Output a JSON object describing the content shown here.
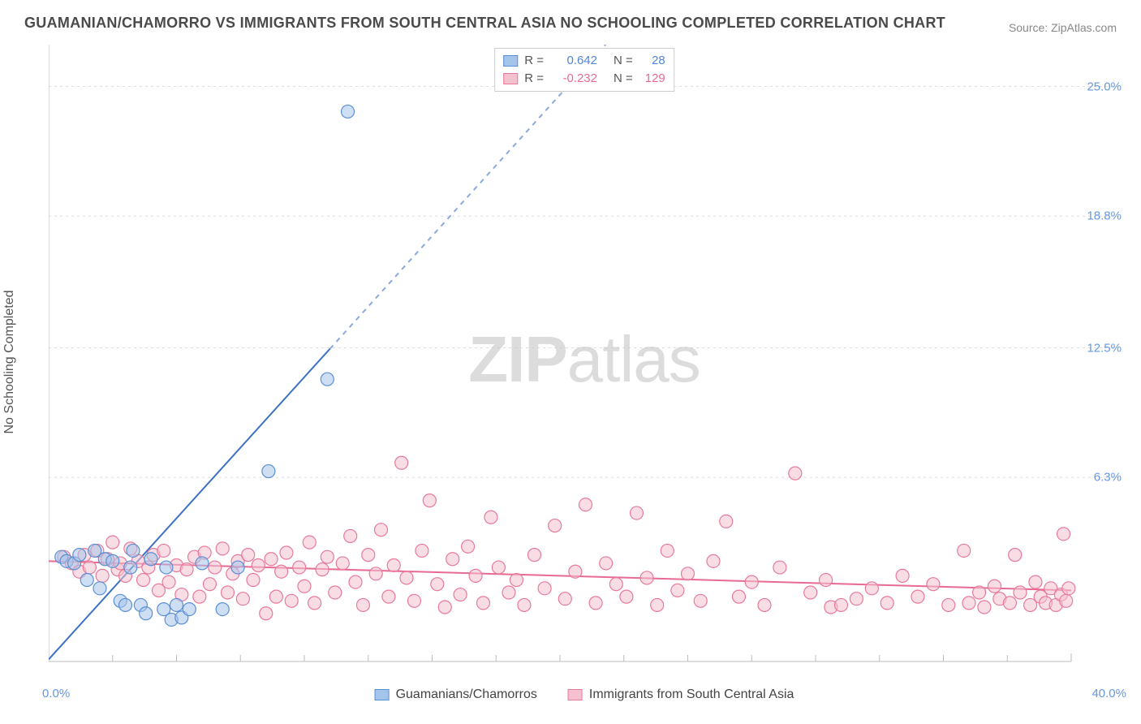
{
  "title": "GUAMANIAN/CHAMORRO VS IMMIGRANTS FROM SOUTH CENTRAL ASIA NO SCHOOLING COMPLETED CORRELATION CHART",
  "source": "Source: ZipAtlas.com",
  "y_axis_label": "No Schooling Completed",
  "watermark": {
    "bold": "ZIP",
    "light": "atlas"
  },
  "chart": {
    "type": "scatter",
    "xlim": [
      0,
      40
    ],
    "ylim": [
      -2.5,
      27
    ],
    "x_ticks_minor_step": 2.5,
    "y_ticks": [
      {
        "value": 6.3,
        "label": "6.3%"
      },
      {
        "value": 12.5,
        "label": "12.5%"
      },
      {
        "value": 18.8,
        "label": "18.8%"
      },
      {
        "value": 25.0,
        "label": "25.0%"
      }
    ],
    "x_tick_labels": {
      "min": "0.0%",
      "max": "40.0%"
    },
    "grid_color": "#dddddd",
    "axis_color": "#bbbbbb",
    "background_color": "#ffffff",
    "border_color": "#bbbbbb",
    "series": [
      {
        "id": "blue",
        "name": "Guamanians/Chamorros",
        "fill_color": "#a5c4ea",
        "stroke_color": "#5b8fd4",
        "marker_radius": 8,
        "R": "0.642",
        "N": "28",
        "R_color": "#4f86d8",
        "trend": {
          "slope": 1.35,
          "intercept": -2.4,
          "color": "#3d72c4",
          "dash_after_x": 11.0,
          "width": 2
        },
        "points": [
          [
            0.5,
            2.5
          ],
          [
            0.7,
            2.3
          ],
          [
            1.0,
            2.2
          ],
          [
            1.2,
            2.6
          ],
          [
            1.5,
            1.4
          ],
          [
            1.8,
            2.8
          ],
          [
            2.0,
            1.0
          ],
          [
            2.2,
            2.4
          ],
          [
            2.5,
            2.3
          ],
          [
            2.8,
            0.4
          ],
          [
            3.0,
            0.2
          ],
          [
            3.2,
            2.0
          ],
          [
            3.3,
            2.8
          ],
          [
            3.6,
            0.2
          ],
          [
            3.8,
            -0.2
          ],
          [
            4.0,
            2.4
          ],
          [
            4.5,
            0.0
          ],
          [
            4.6,
            2.0
          ],
          [
            4.8,
            -0.5
          ],
          [
            5.0,
            0.2
          ],
          [
            5.2,
            -0.4
          ],
          [
            5.5,
            0.0
          ],
          [
            6.0,
            2.2
          ],
          [
            6.8,
            0.0
          ],
          [
            7.4,
            2.0
          ],
          [
            8.6,
            6.6
          ],
          [
            10.9,
            11.0
          ],
          [
            11.7,
            23.8
          ]
        ]
      },
      {
        "id": "pink",
        "name": "Immigrants from South Central Asia",
        "fill_color": "#f4c1cf",
        "stroke_color": "#e77a9b",
        "marker_radius": 8,
        "R": "-0.232",
        "N": "129",
        "R_color": "#e86a92",
        "trend": {
          "slope": -0.035,
          "intercept": 2.3,
          "color": "#e86a92",
          "dash_after_x": 999,
          "width": 2
        },
        "points": [
          [
            0.6,
            2.5
          ],
          [
            0.9,
            2.2
          ],
          [
            1.2,
            1.8
          ],
          [
            1.4,
            2.6
          ],
          [
            1.6,
            2.0
          ],
          [
            1.9,
            2.8
          ],
          [
            2.1,
            1.6
          ],
          [
            2.3,
            2.4
          ],
          [
            2.5,
            3.2
          ],
          [
            2.7,
            1.9
          ],
          [
            2.8,
            2.2
          ],
          [
            3.0,
            1.6
          ],
          [
            3.2,
            2.9
          ],
          [
            3.5,
            2.3
          ],
          [
            3.7,
            1.4
          ],
          [
            3.9,
            2.0
          ],
          [
            4.1,
            2.6
          ],
          [
            4.3,
            0.9
          ],
          [
            4.5,
            2.8
          ],
          [
            4.7,
            1.3
          ],
          [
            5.0,
            2.1
          ],
          [
            5.2,
            0.7
          ],
          [
            5.4,
            1.9
          ],
          [
            5.7,
            2.5
          ],
          [
            5.9,
            0.6
          ],
          [
            6.1,
            2.7
          ],
          [
            6.3,
            1.2
          ],
          [
            6.5,
            2.0
          ],
          [
            6.8,
            2.9
          ],
          [
            7.0,
            0.8
          ],
          [
            7.2,
            1.7
          ],
          [
            7.4,
            2.3
          ],
          [
            7.6,
            0.5
          ],
          [
            7.8,
            2.6
          ],
          [
            8.0,
            1.4
          ],
          [
            8.2,
            2.1
          ],
          [
            8.5,
            -0.2
          ],
          [
            8.7,
            2.4
          ],
          [
            8.9,
            0.6
          ],
          [
            9.1,
            1.8
          ],
          [
            9.3,
            2.7
          ],
          [
            9.5,
            0.4
          ],
          [
            9.8,
            2.0
          ],
          [
            10.0,
            1.1
          ],
          [
            10.2,
            3.2
          ],
          [
            10.4,
            0.3
          ],
          [
            10.7,
            1.9
          ],
          [
            10.9,
            2.5
          ],
          [
            11.2,
            0.8
          ],
          [
            11.5,
            2.2
          ],
          [
            11.8,
            3.5
          ],
          [
            12.0,
            1.3
          ],
          [
            12.3,
            0.2
          ],
          [
            12.5,
            2.6
          ],
          [
            12.8,
            1.7
          ],
          [
            13.0,
            3.8
          ],
          [
            13.3,
            0.6
          ],
          [
            13.5,
            2.1
          ],
          [
            13.8,
            7.0
          ],
          [
            14.0,
            1.5
          ],
          [
            14.3,
            0.4
          ],
          [
            14.6,
            2.8
          ],
          [
            14.9,
            5.2
          ],
          [
            15.2,
            1.2
          ],
          [
            15.5,
            0.1
          ],
          [
            15.8,
            2.4
          ],
          [
            16.1,
            0.7
          ],
          [
            16.4,
            3.0
          ],
          [
            16.7,
            1.6
          ],
          [
            17.0,
            0.3
          ],
          [
            17.3,
            4.4
          ],
          [
            17.6,
            2.0
          ],
          [
            18.0,
            0.8
          ],
          [
            18.3,
            1.4
          ],
          [
            18.6,
            0.2
          ],
          [
            19.0,
            2.6
          ],
          [
            19.4,
            1.0
          ],
          [
            19.8,
            4.0
          ],
          [
            20.2,
            0.5
          ],
          [
            20.6,
            1.8
          ],
          [
            21.0,
            5.0
          ],
          [
            21.4,
            0.3
          ],
          [
            21.8,
            2.2
          ],
          [
            22.2,
            1.2
          ],
          [
            22.6,
            0.6
          ],
          [
            23.0,
            4.6
          ],
          [
            23.4,
            1.5
          ],
          [
            23.8,
            0.2
          ],
          [
            24.2,
            2.8
          ],
          [
            24.6,
            0.9
          ],
          [
            25.0,
            1.7
          ],
          [
            25.5,
            0.4
          ],
          [
            26.0,
            2.3
          ],
          [
            26.5,
            4.2
          ],
          [
            27.0,
            0.6
          ],
          [
            27.5,
            1.3
          ],
          [
            28.0,
            0.2
          ],
          [
            28.6,
            2.0
          ],
          [
            29.2,
            6.5
          ],
          [
            29.8,
            0.8
          ],
          [
            30.4,
            1.4
          ],
          [
            30.6,
            0.1
          ],
          [
            31.0,
            0.2
          ],
          [
            31.6,
            0.5
          ],
          [
            32.2,
            1.0
          ],
          [
            32.8,
            0.3
          ],
          [
            33.4,
            1.6
          ],
          [
            34.0,
            0.6
          ],
          [
            34.6,
            1.2
          ],
          [
            35.2,
            0.2
          ],
          [
            35.8,
            2.8
          ],
          [
            36.0,
            0.3
          ],
          [
            36.4,
            0.8
          ],
          [
            36.6,
            0.1
          ],
          [
            37.0,
            1.1
          ],
          [
            37.2,
            0.5
          ],
          [
            37.6,
            0.3
          ],
          [
            37.8,
            2.6
          ],
          [
            38.0,
            0.8
          ],
          [
            38.4,
            0.2
          ],
          [
            38.6,
            1.3
          ],
          [
            38.8,
            0.6
          ],
          [
            39.0,
            0.3
          ],
          [
            39.2,
            1.0
          ],
          [
            39.4,
            0.2
          ],
          [
            39.6,
            0.7
          ],
          [
            39.7,
            3.6
          ],
          [
            39.8,
            0.4
          ],
          [
            39.9,
            1.0
          ]
        ]
      }
    ]
  }
}
